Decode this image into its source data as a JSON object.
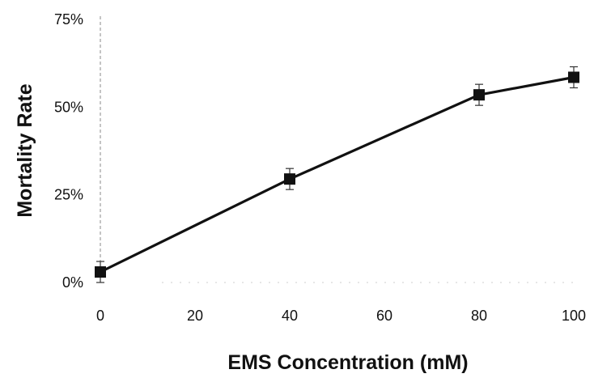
{
  "chart_data": {
    "type": "line",
    "title": "",
    "xlabel": "EMS Concentration (mM)",
    "ylabel": "Mortality Rate",
    "x": [
      0,
      40,
      80,
      100
    ],
    "xlim": [
      0,
      100
    ],
    "xticks": [
      0,
      20,
      40,
      60,
      80,
      100
    ],
    "xtick_labels": [
      "0",
      "20",
      "40",
      "60",
      "80",
      "100"
    ],
    "ylim": [
      0,
      75
    ],
    "yticks": [
      0,
      25,
      50,
      75
    ],
    "ytick_labels": [
      "0%",
      "25%",
      "50%",
      "75%"
    ],
    "grid": false,
    "legend": "none",
    "series": [
      {
        "values": [
          3,
          29.5,
          53.5,
          58.5
        ],
        "error": [
          3,
          3,
          3,
          3
        ],
        "color": "#111111",
        "marker": "square"
      }
    ]
  }
}
